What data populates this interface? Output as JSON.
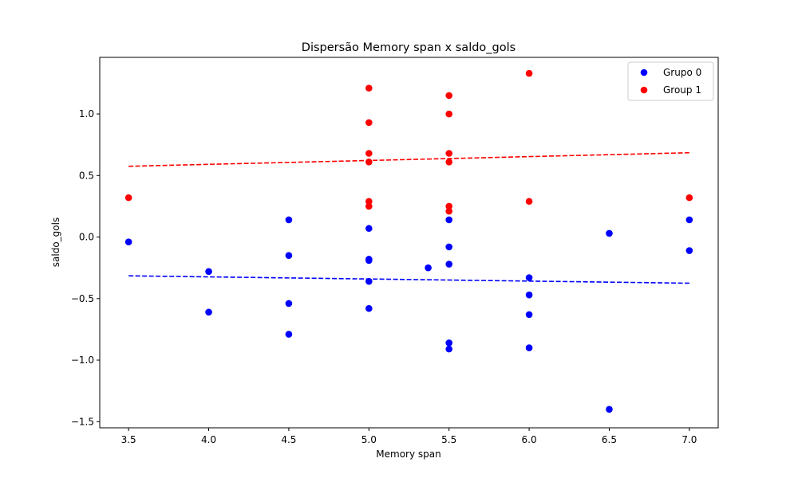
{
  "chart_data": {
    "type": "scatter",
    "title": "Dispersão Memory span x saldo_gols",
    "xlabel": "Memory span",
    "ylabel": "saldo_gols",
    "xlim": [
      3.32,
      7.18
    ],
    "ylim": [
      -1.55,
      1.46
    ],
    "xticks": [
      3.5,
      4.0,
      4.5,
      5.0,
      5.5,
      6.0,
      6.5,
      7.0
    ],
    "xtick_labels": [
      "3.5",
      "4.0",
      "4.5",
      "5.0",
      "5.5",
      "6.0",
      "6.5",
      "7.0"
    ],
    "yticks": [
      -1.5,
      -1.0,
      -0.5,
      0.0,
      0.5,
      1.0
    ],
    "ytick_labels": [
      "−1.5",
      "−1.0",
      "−0.5",
      "0.0",
      "0.5",
      "1.0"
    ],
    "grid": false,
    "legend_position": "top-right",
    "series": [
      {
        "name": "Grupo 0",
        "color": "#0000ff",
        "points": [
          [
            3.5,
            -0.04
          ],
          [
            4.0,
            -0.28
          ],
          [
            4.0,
            -0.61
          ],
          [
            4.5,
            0.14
          ],
          [
            4.5,
            -0.15
          ],
          [
            4.5,
            -0.54
          ],
          [
            4.5,
            -0.79
          ],
          [
            5.0,
            0.07
          ],
          [
            5.0,
            -0.18
          ],
          [
            5.0,
            -0.19
          ],
          [
            5.0,
            -0.36
          ],
          [
            5.0,
            -0.58
          ],
          [
            5.37,
            -0.25
          ],
          [
            5.5,
            0.14
          ],
          [
            5.5,
            -0.08
          ],
          [
            5.5,
            -0.22
          ],
          [
            5.5,
            -0.86
          ],
          [
            5.5,
            -0.91
          ],
          [
            6.0,
            -0.33
          ],
          [
            6.0,
            -0.47
          ],
          [
            6.0,
            -0.63
          ],
          [
            6.0,
            -0.9
          ],
          [
            6.5,
            0.03
          ],
          [
            6.5,
            -1.4
          ],
          [
            7.0,
            0.14
          ],
          [
            7.0,
            -0.11
          ]
        ],
        "trend": {
          "x": [
            3.5,
            7.0
          ],
          "y": [
            -0.315,
            -0.375
          ],
          "style": "dashed"
        }
      },
      {
        "name": "Group 1",
        "color": "#ff0000",
        "points": [
          [
            3.5,
            0.32
          ],
          [
            5.0,
            1.21
          ],
          [
            5.0,
            0.93
          ],
          [
            5.0,
            0.68
          ],
          [
            5.0,
            0.61
          ],
          [
            5.0,
            0.29
          ],
          [
            5.0,
            0.25
          ],
          [
            5.5,
            1.15
          ],
          [
            5.5,
            1.0
          ],
          [
            5.5,
            0.68
          ],
          [
            5.5,
            0.61
          ],
          [
            5.5,
            0.25
          ],
          [
            5.5,
            0.21
          ],
          [
            6.0,
            1.33
          ],
          [
            6.0,
            0.29
          ],
          [
            7.0,
            0.32
          ]
        ],
        "trend": {
          "x": [
            3.5,
            7.0
          ],
          "y": [
            0.575,
            0.685
          ],
          "style": "dashed"
        }
      }
    ]
  }
}
